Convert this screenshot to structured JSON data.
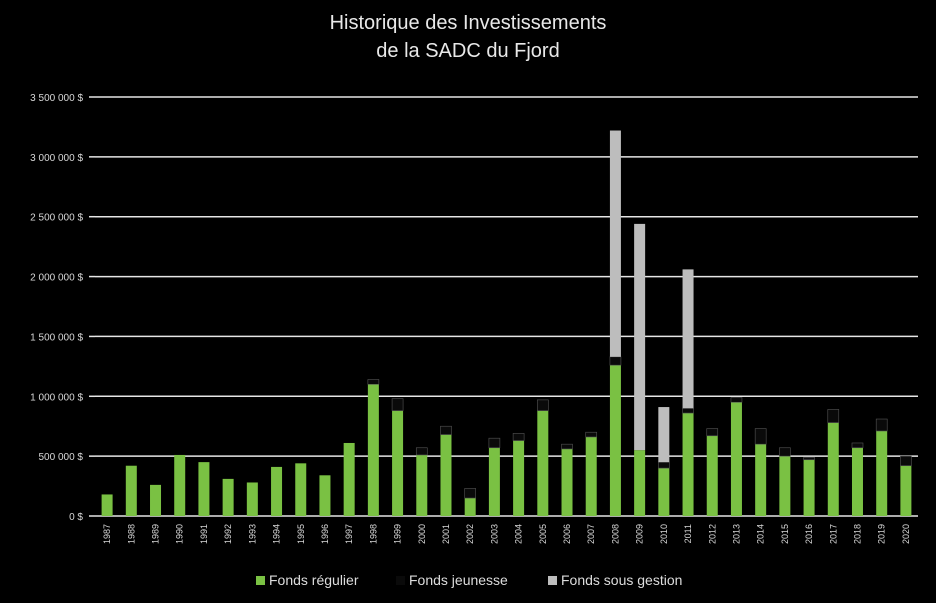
{
  "chart_data": {
    "type": "bar",
    "stacked": true,
    "title_lines": [
      "Historique des Investissements",
      "de la SADC du Fjord"
    ],
    "xlabel": "",
    "ylabel": "",
    "ylim": [
      0,
      3500000
    ],
    "y_ticks": [
      "0 $",
      "500 000 $",
      "1 000 000 $",
      "1 500 000 $",
      "2 000 000 $",
      "2 500 000 $",
      "3 000 000 $",
      "3 500 000 $"
    ],
    "grid": true,
    "legend_position": "bottom",
    "categories": [
      "1987",
      "1988",
      "1989",
      "1990",
      "1991",
      "1992",
      "1993",
      "1994",
      "1995",
      "1996",
      "1997",
      "1998",
      "1999",
      "2000",
      "2001",
      "2002",
      "2003",
      "2004",
      "2005",
      "2006",
      "2007",
      "2008",
      "2009",
      "2010",
      "2011",
      "2012",
      "2013",
      "2014",
      "2015",
      "2016",
      "2017",
      "2018",
      "2019",
      "2020"
    ],
    "series": [
      {
        "name": "Fonds régulier",
        "color": "#7ac143",
        "values": [
          180000,
          420000,
          260000,
          510000,
          450000,
          310000,
          280000,
          410000,
          440000,
          340000,
          610000,
          1100000,
          880000,
          510000,
          680000,
          150000,
          570000,
          630000,
          880000,
          560000,
          660000,
          1260000,
          550000,
          400000,
          860000,
          670000,
          950000,
          600000,
          500000,
          470000,
          780000,
          570000,
          710000,
          420000
        ]
      },
      {
        "name": "Fonds jeunesse",
        "color": "#0a0a0a",
        "values": [
          0,
          0,
          0,
          0,
          0,
          0,
          0,
          0,
          0,
          0,
          0,
          40000,
          100000,
          60000,
          70000,
          80000,
          80000,
          60000,
          90000,
          40000,
          40000,
          70000,
          0,
          50000,
          40000,
          60000,
          40000,
          130000,
          70000,
          20000,
          110000,
          40000,
          100000,
          80000
        ]
      },
      {
        "name": "Fonds sous gestion",
        "color": "#bdbdbd",
        "values": [
          0,
          0,
          0,
          0,
          0,
          0,
          0,
          0,
          0,
          0,
          0,
          0,
          0,
          0,
          0,
          0,
          0,
          0,
          0,
          0,
          0,
          1890000,
          1890000,
          460000,
          1160000,
          0,
          0,
          0,
          0,
          0,
          0,
          0,
          0,
          0
        ]
      }
    ]
  }
}
